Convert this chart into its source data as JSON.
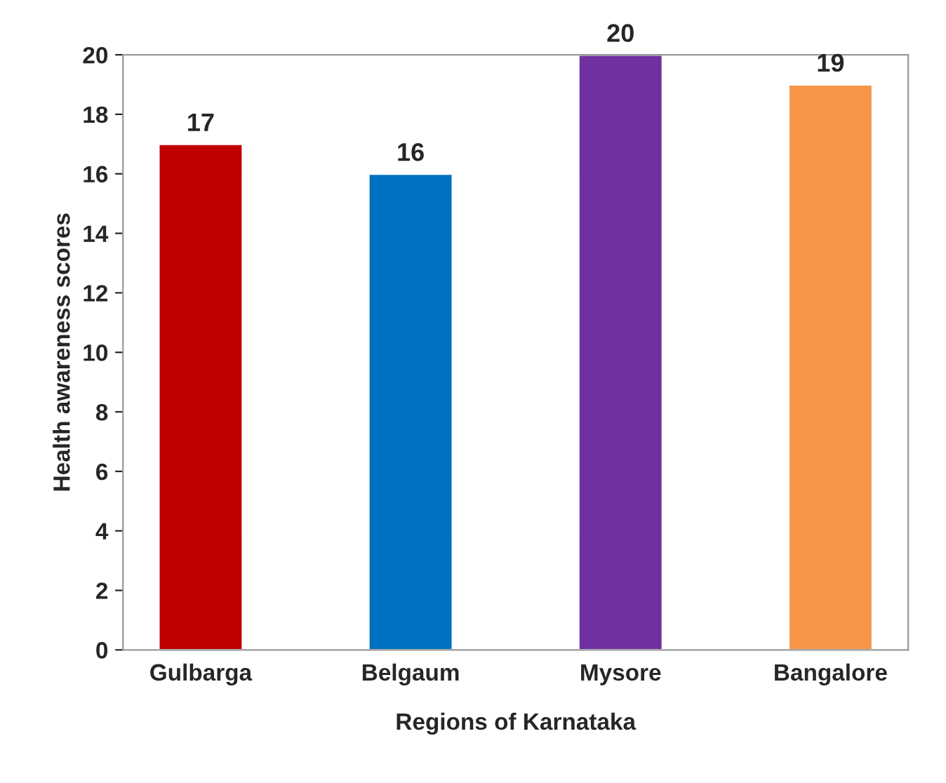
{
  "chart_data": {
    "type": "bar",
    "xlabel": "Regions of Karnataka",
    "ylabel": "Health awareness scores",
    "categories": [
      "Gulbarga",
      "Belgaum",
      "Mysore",
      "Bangalore"
    ],
    "values": [
      17,
      16,
      20,
      19
    ],
    "colors": [
      "#c00000",
      "#0070c0",
      "#7030a0",
      "#f79646"
    ],
    "ylim": [
      0,
      20
    ],
    "yticks": [
      0,
      2,
      4,
      6,
      8,
      10,
      12,
      14,
      16,
      18,
      20
    ],
    "data_labels": true,
    "grid": false,
    "legend": false
  }
}
